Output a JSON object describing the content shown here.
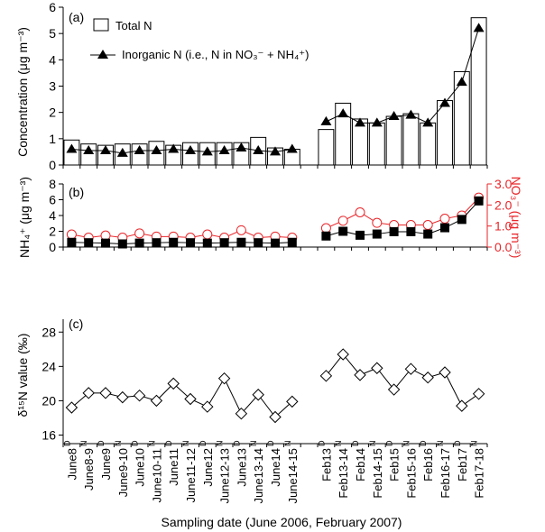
{
  "figure": {
    "xlabel": "Sampling date (June 2006, February 2007)"
  },
  "chart_data": [
    {
      "panel_label": "(a)",
      "type": "bar",
      "ylabel": "Concentration (μg m⁻³)",
      "ylim": [
        0,
        6
      ],
      "yticks": [
        0,
        1,
        2,
        3,
        4,
        5,
        6
      ],
      "legend": {
        "placement": "top-left",
        "entries": [
          "Total N",
          "Inorganic N (i.e., N in NO₃⁻ + NH₄⁺)"
        ]
      },
      "series": [
        {
          "name": "Total N",
          "kind": "bar",
          "values": [
            0.95,
            0.8,
            0.75,
            0.8,
            0.8,
            0.9,
            0.75,
            0.85,
            0.85,
            0.85,
            0.85,
            1.05,
            0.65,
            0.6,
            null,
            1.35,
            2.35,
            1.75,
            1.6,
            1.85,
            1.95,
            1.6,
            2.45,
            3.55,
            5.6
          ]
        },
        {
          "name": "Inorganic N (i.e., N in NO₃⁻ + NH₄⁺)",
          "kind": "line",
          "color": "#000000",
          "values": [
            0.6,
            0.55,
            0.55,
            0.45,
            0.55,
            0.55,
            0.6,
            0.55,
            0.5,
            0.55,
            0.65,
            0.55,
            0.5,
            0.6,
            null,
            1.65,
            1.95,
            1.6,
            1.6,
            1.85,
            1.9,
            1.6,
            2.35,
            3.15,
            5.2
          ]
        }
      ]
    },
    {
      "panel_label": "(b)",
      "type": "line",
      "ylabel": "NH₄⁺ (μg m⁻³)",
      "ylim": [
        0,
        8
      ],
      "yticks": [
        0,
        2,
        4,
        6,
        8
      ],
      "y2label": "NO₃⁻ (μg m⁻³)",
      "y2lim": [
        0,
        3.0
      ],
      "y2ticks": [
        "0.0",
        "1.0",
        "2.0",
        "3.0"
      ],
      "y2color": "#e8262a",
      "series": [
        {
          "name": "NH₄⁺",
          "axis": "left",
          "marker": "square",
          "color": "#000000",
          "values": [
            0.6,
            0.55,
            0.5,
            0.4,
            0.5,
            0.55,
            0.6,
            0.55,
            0.5,
            0.55,
            0.6,
            0.55,
            0.5,
            0.6,
            null,
            1.4,
            2.0,
            1.5,
            1.65,
            1.95,
            1.95,
            1.65,
            2.45,
            3.5,
            5.85
          ]
        },
        {
          "name": "NO₃⁻",
          "axis": "right",
          "marker": "open-circle",
          "color": "#e8262a",
          "values": [
            0.6,
            0.45,
            0.55,
            0.45,
            0.65,
            0.5,
            0.5,
            0.45,
            0.6,
            0.45,
            0.8,
            0.45,
            0.5,
            0.45,
            null,
            0.9,
            1.25,
            1.65,
            1.15,
            1.05,
            1.05,
            1.05,
            1.35,
            1.5,
            2.35
          ]
        }
      ]
    },
    {
      "panel_label": "(c)",
      "type": "line",
      "ylabel": "δ¹⁵N value (‰)",
      "ylim": [
        15,
        29.5
      ],
      "yticks": [
        16,
        20,
        24,
        28
      ],
      "series": [
        {
          "name": "δ¹⁵N",
          "marker": "open-diamond",
          "color": "#000000",
          "values": [
            19.2,
            20.9,
            20.9,
            20.4,
            20.6,
            20.0,
            22.0,
            20.2,
            19.3,
            22.6,
            18.5,
            20.7,
            18.1,
            19.9,
            null,
            22.9,
            25.4,
            23.0,
            23.8,
            21.3,
            23.7,
            22.7,
            23.3,
            19.4,
            20.8
          ]
        }
      ]
    }
  ],
  "x_axis": {
    "categories": [
      "June8",
      "June8-9",
      "June9",
      "June9-10",
      "June10",
      "June10-11",
      "June11",
      "June11-12",
      "June12",
      "June12-13",
      "June13",
      "June13-14",
      "June14",
      "June14-15",
      "",
      "Feb13",
      "Feb13-14",
      "Feb14",
      "Feb14-15",
      "Feb15",
      "Feb15-16",
      "Feb16",
      "Feb16-17",
      "Feb17",
      "Feb17-18"
    ],
    "superscripts": [
      "D",
      "N",
      "D",
      "N",
      "D",
      "N",
      "D",
      "N",
      "D",
      "N",
      "D",
      "N",
      "D",
      "N",
      "",
      "D",
      "N",
      "D",
      "N",
      "D",
      "N",
      "D",
      "N",
      "D",
      "N"
    ]
  }
}
